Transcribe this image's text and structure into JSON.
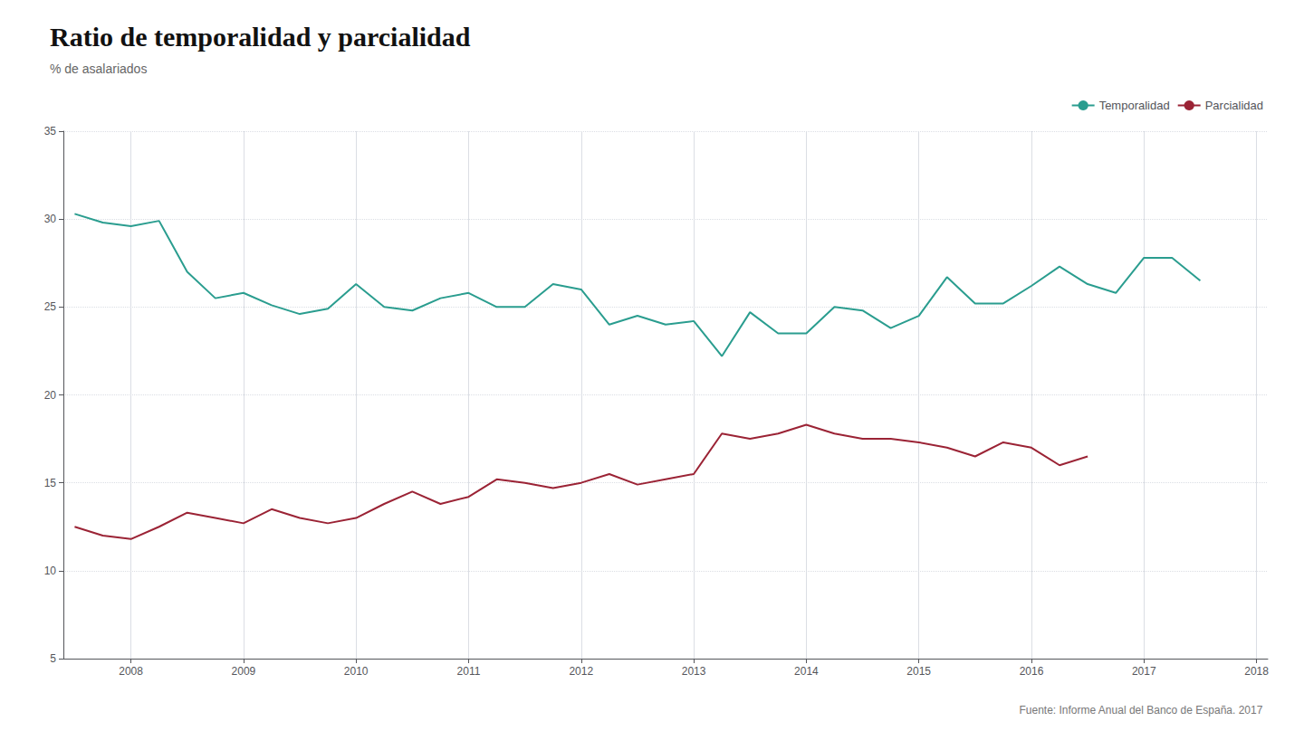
{
  "chart_data": {
    "type": "line",
    "title": "Ratio de temporalidad y parcialidad",
    "subtitle": "% de asalariados",
    "source": "Fuente: Informe Anual del Banco de España. 2017",
    "x": [
      2007.5,
      2007.75,
      2008.0,
      2008.25,
      2008.5,
      2008.75,
      2009.0,
      2009.25,
      2009.5,
      2009.75,
      2010.0,
      2010.25,
      2010.5,
      2010.75,
      2011.0,
      2011.25,
      2011.5,
      2011.75,
      2012.0,
      2012.25,
      2012.5,
      2012.75,
      2013.0,
      2013.25,
      2013.5,
      2013.75,
      2014.0,
      2014.25,
      2014.5,
      2014.75,
      2015.0,
      2015.25,
      2015.5,
      2015.75,
      2016.0,
      2016.25,
      2016.5,
      2016.75,
      2017.0,
      2017.25,
      2017.5
    ],
    "series": [
      {
        "name": "Temporalidad",
        "color": "#2a9d8f",
        "values": [
          30.3,
          29.8,
          29.6,
          29.9,
          27.0,
          25.5,
          25.8,
          25.1,
          24.6,
          24.9,
          26.3,
          25.0,
          24.8,
          25.5,
          25.8,
          25.0,
          25.0,
          26.3,
          26.0,
          24.0,
          24.5,
          24.0,
          24.2,
          22.2,
          24.7,
          23.5,
          23.5,
          25.0,
          24.8,
          23.8,
          24.5,
          26.7,
          25.2,
          25.2,
          26.2,
          27.3,
          26.3,
          25.8,
          27.8,
          27.8,
          26.5
        ]
      },
      {
        "name": "Parcialidad",
        "color": "#9b2335",
        "values": [
          12.5,
          12.0,
          11.8,
          12.5,
          13.3,
          13.0,
          12.7,
          13.5,
          13.0,
          12.7,
          13.0,
          13.8,
          14.5,
          13.8,
          14.2,
          15.2,
          15.0,
          14.7,
          15.0,
          15.5,
          14.9,
          15.2,
          15.5,
          17.8,
          17.5,
          17.8,
          18.3,
          17.8,
          17.5,
          17.5,
          17.3,
          17.0,
          16.5,
          17.3,
          17.0,
          16.0,
          16.5,
          null,
          null,
          null,
          null
        ]
      }
    ],
    "xlim": [
      2007.4,
      2018.1
    ],
    "xticks": [
      2008,
      2009,
      2010,
      2011,
      2012,
      2013,
      2014,
      2015,
      2016,
      2017,
      2018
    ],
    "ylim": [
      5,
      35
    ],
    "yticks": [
      5,
      10,
      15,
      20,
      25,
      30,
      35
    ],
    "grid": true,
    "legend": "upper right"
  }
}
